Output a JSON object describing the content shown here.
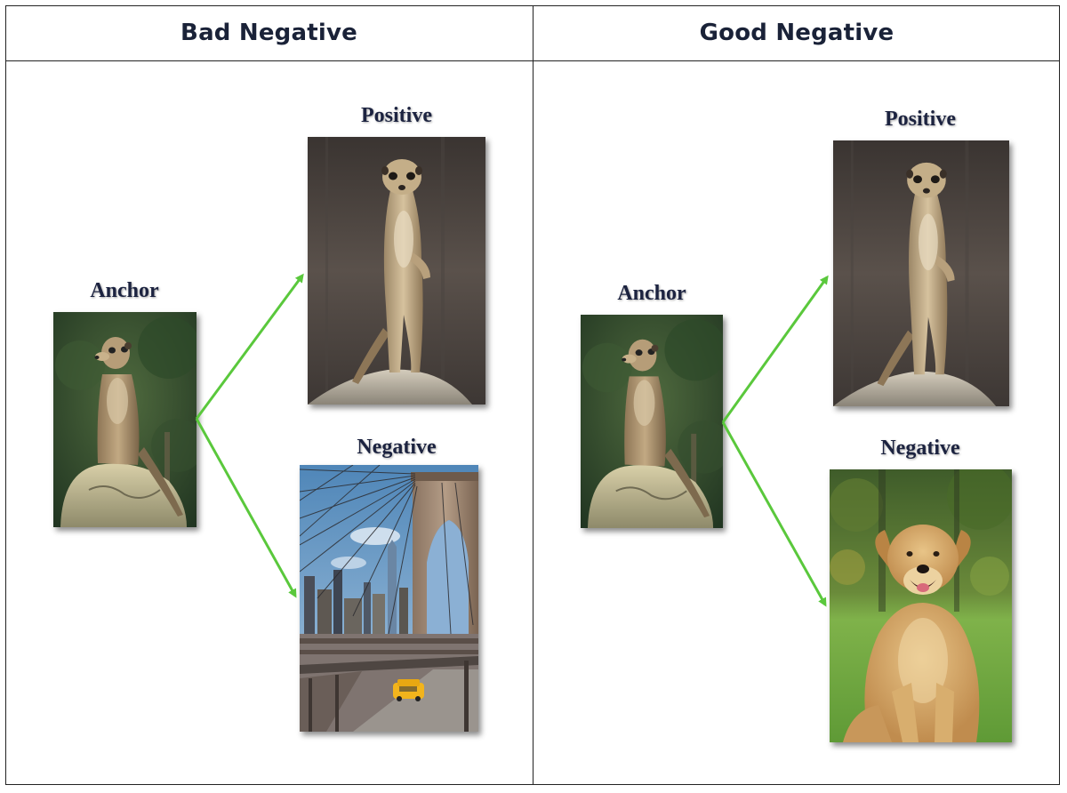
{
  "columns": {
    "left": {
      "title": "Bad Negative"
    },
    "right": {
      "title": "Good Negative"
    }
  },
  "labels": {
    "anchor": "Anchor",
    "positive": "Positive",
    "negative": "Negative"
  },
  "images": {
    "anchor": "meerkat standing on rock, green foliage background",
    "positive": "meerkat standing upright on rock, grey background",
    "bad_negative": "Brooklyn Bridge with city skyline and yellow taxi",
    "good_negative": "golden retriever sitting on grass"
  },
  "colors": {
    "arrow": "#5ac83c",
    "title_text": "#1a2238",
    "border": "#222222"
  }
}
